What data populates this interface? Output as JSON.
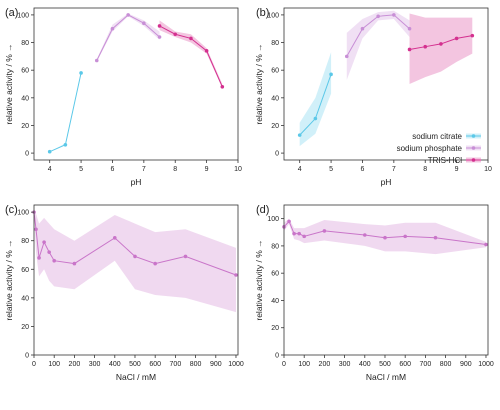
{
  "colors": {
    "citrate": "#5bc8e8",
    "phosphate": "#c88fd6",
    "tris": "#d4308f",
    "nacl": "#c975c9"
  },
  "chart_data": [
    {
      "panel": "(a)",
      "type": "line",
      "xlabel": "pH",
      "ylabel": "relative activity / % →",
      "xlim": [
        3.5,
        10
      ],
      "ylim": [
        -5,
        105
      ],
      "xticks": [
        "4",
        "5",
        "6",
        "7",
        "8",
        "9",
        "10"
      ],
      "yticks": [
        "0",
        "20",
        "40",
        "60",
        "80",
        "100"
      ],
      "legend": null,
      "series": [
        {
          "name": "sodium citrate",
          "color_key": "citrate",
          "points": [
            [
              4,
              1
            ],
            [
              4.5,
              6
            ],
            [
              5,
              58
            ]
          ],
          "band": [
            [
              4,
              1,
              1
            ],
            [
              4.5,
              6,
              7
            ],
            [
              5,
              57,
              59
            ]
          ]
        },
        {
          "name": "sodium phosphate",
          "color_key": "phosphate",
          "points": [
            [
              5.5,
              67
            ],
            [
              6,
              90
            ],
            [
              6.5,
              100
            ],
            [
              7,
              94
            ],
            [
              7.5,
              84
            ]
          ],
          "band": [
            [
              5.5,
              66,
              68
            ],
            [
              6,
              88,
              93
            ],
            [
              6.5,
              99,
              101
            ],
            [
              7,
              92,
              96
            ],
            [
              7.5,
              82,
              88
            ]
          ]
        },
        {
          "name": "TRIS-HCl",
          "color_key": "tris",
          "points": [
            [
              7.5,
              92
            ],
            [
              8,
              86
            ],
            [
              8.5,
              83
            ],
            [
              9,
              74
            ],
            [
              9.5,
              48
            ]
          ],
          "band": [
            [
              7.5,
              89,
              96
            ],
            [
              8,
              84,
              88
            ],
            [
              8.5,
              80,
              86
            ],
            [
              9,
              72,
              76
            ],
            [
              9.5,
              47,
              50
            ]
          ]
        }
      ]
    },
    {
      "panel": "(b)",
      "type": "line",
      "xlabel": "pH",
      "ylabel": "relative activity / % →",
      "xlim": [
        3.5,
        10
      ],
      "ylim": [
        -5,
        105
      ],
      "xticks": [
        "4",
        "5",
        "6",
        "7",
        "8",
        "9",
        "10"
      ],
      "yticks": [
        "0",
        "20",
        "40",
        "60",
        "80",
        "100"
      ],
      "legend": {
        "position": "bottom-right",
        "entries": [
          "sodium citrate",
          "sodium phosphate",
          "TRIS-HCl"
        ]
      },
      "series": [
        {
          "name": "sodium citrate",
          "color_key": "citrate",
          "points": [
            [
              4,
              13
            ],
            [
              4.5,
              25
            ],
            [
              5,
              57
            ]
          ],
          "band": [
            [
              4,
              5,
              22
            ],
            [
              4.5,
              14,
              40
            ],
            [
              5,
              43,
              73
            ]
          ]
        },
        {
          "name": "sodium phosphate",
          "color_key": "phosphate",
          "points": [
            [
              5.5,
              70
            ],
            [
              6,
              90
            ],
            [
              6.5,
              99
            ],
            [
              7,
              100
            ],
            [
              7.5,
              90
            ]
          ],
          "band": [
            [
              5.5,
              53,
              87
            ],
            [
              6,
              83,
              97
            ],
            [
              6.5,
              96,
              102
            ],
            [
              7,
              97,
              103
            ],
            [
              7.5,
              84,
              96
            ]
          ]
        },
        {
          "name": "TRIS-HCl",
          "color_key": "tris",
          "points": [
            [
              7.5,
              75
            ],
            [
              8,
              77
            ],
            [
              8.5,
              79
            ],
            [
              9,
              83
            ],
            [
              9.5,
              85
            ]
          ],
          "band": [
            [
              7.5,
              50,
              101
            ],
            [
              8,
              55,
              98
            ],
            [
              8.5,
              59,
              98
            ],
            [
              9,
              66,
              98
            ],
            [
              9.5,
              72,
              98
            ]
          ]
        }
      ]
    },
    {
      "panel": "(c)",
      "type": "line",
      "xlabel": "NaCl / mM",
      "ylabel": "relative activity / % →",
      "xlim": [
        0,
        1010
      ],
      "ylim": [
        0,
        105
      ],
      "xticks": [
        "0",
        "100",
        "200",
        "300",
        "400",
        "500",
        "600",
        "700",
        "800",
        "900",
        "1000"
      ],
      "yticks": [
        "0",
        "20",
        "40",
        "60",
        "80",
        "100"
      ],
      "legend": null,
      "series": [
        {
          "name": "",
          "color_key": "nacl",
          "points": [
            [
              0,
              100
            ],
            [
              10,
              88
            ],
            [
              25,
              68
            ],
            [
              50,
              79
            ],
            [
              75,
              72
            ],
            [
              100,
              66
            ],
            [
              200,
              64
            ],
            [
              400,
              82
            ],
            [
              500,
              69
            ],
            [
              600,
              64
            ],
            [
              750,
              69
            ],
            [
              1000,
              56
            ]
          ],
          "band": [
            [
              0,
              100,
              100
            ],
            [
              10,
              72,
              99
            ],
            [
              25,
              55,
              92
            ],
            [
              50,
              60,
              96
            ],
            [
              75,
              52,
              92
            ],
            [
              100,
              48,
              88
            ],
            [
              200,
              46,
              80
            ],
            [
              400,
              66,
              98
            ],
            [
              500,
              46,
              92
            ],
            [
              600,
              42,
              86
            ],
            [
              750,
              40,
              88
            ],
            [
              1000,
              30,
              75
            ]
          ]
        }
      ]
    },
    {
      "panel": "(d)",
      "type": "line",
      "xlabel": "NaCl / mM",
      "ylabel": "relative activity / % →",
      "xlim": [
        0,
        1010
      ],
      "ylim": [
        0,
        110
      ],
      "xticks": [
        "0",
        "100",
        "200",
        "300",
        "400",
        "500",
        "600",
        "700",
        "800",
        "900",
        "1000"
      ],
      "yticks": [
        "0",
        "20",
        "40",
        "60",
        "80",
        "100"
      ],
      "legend": null,
      "series": [
        {
          "name": "",
          "color_key": "nacl",
          "points": [
            [
              0,
              94
            ],
            [
              25,
              98
            ],
            [
              50,
              89
            ],
            [
              75,
              89
            ],
            [
              100,
              87
            ],
            [
              200,
              91
            ],
            [
              400,
              88
            ],
            [
              500,
              86
            ],
            [
              600,
              87
            ],
            [
              750,
              86
            ],
            [
              1000,
              81
            ]
          ],
          "band": [
            [
              0,
              91,
              97
            ],
            [
              25,
              96,
              100
            ],
            [
              50,
              85,
              93
            ],
            [
              75,
              84,
              93
            ],
            [
              100,
              82,
              93
            ],
            [
              200,
              84,
              99
            ],
            [
              400,
              80,
              96
            ],
            [
              500,
              76,
              95
            ],
            [
              600,
              76,
              97
            ],
            [
              750,
              74,
              97
            ],
            [
              1000,
              79,
              83
            ]
          ]
        }
      ]
    }
  ]
}
